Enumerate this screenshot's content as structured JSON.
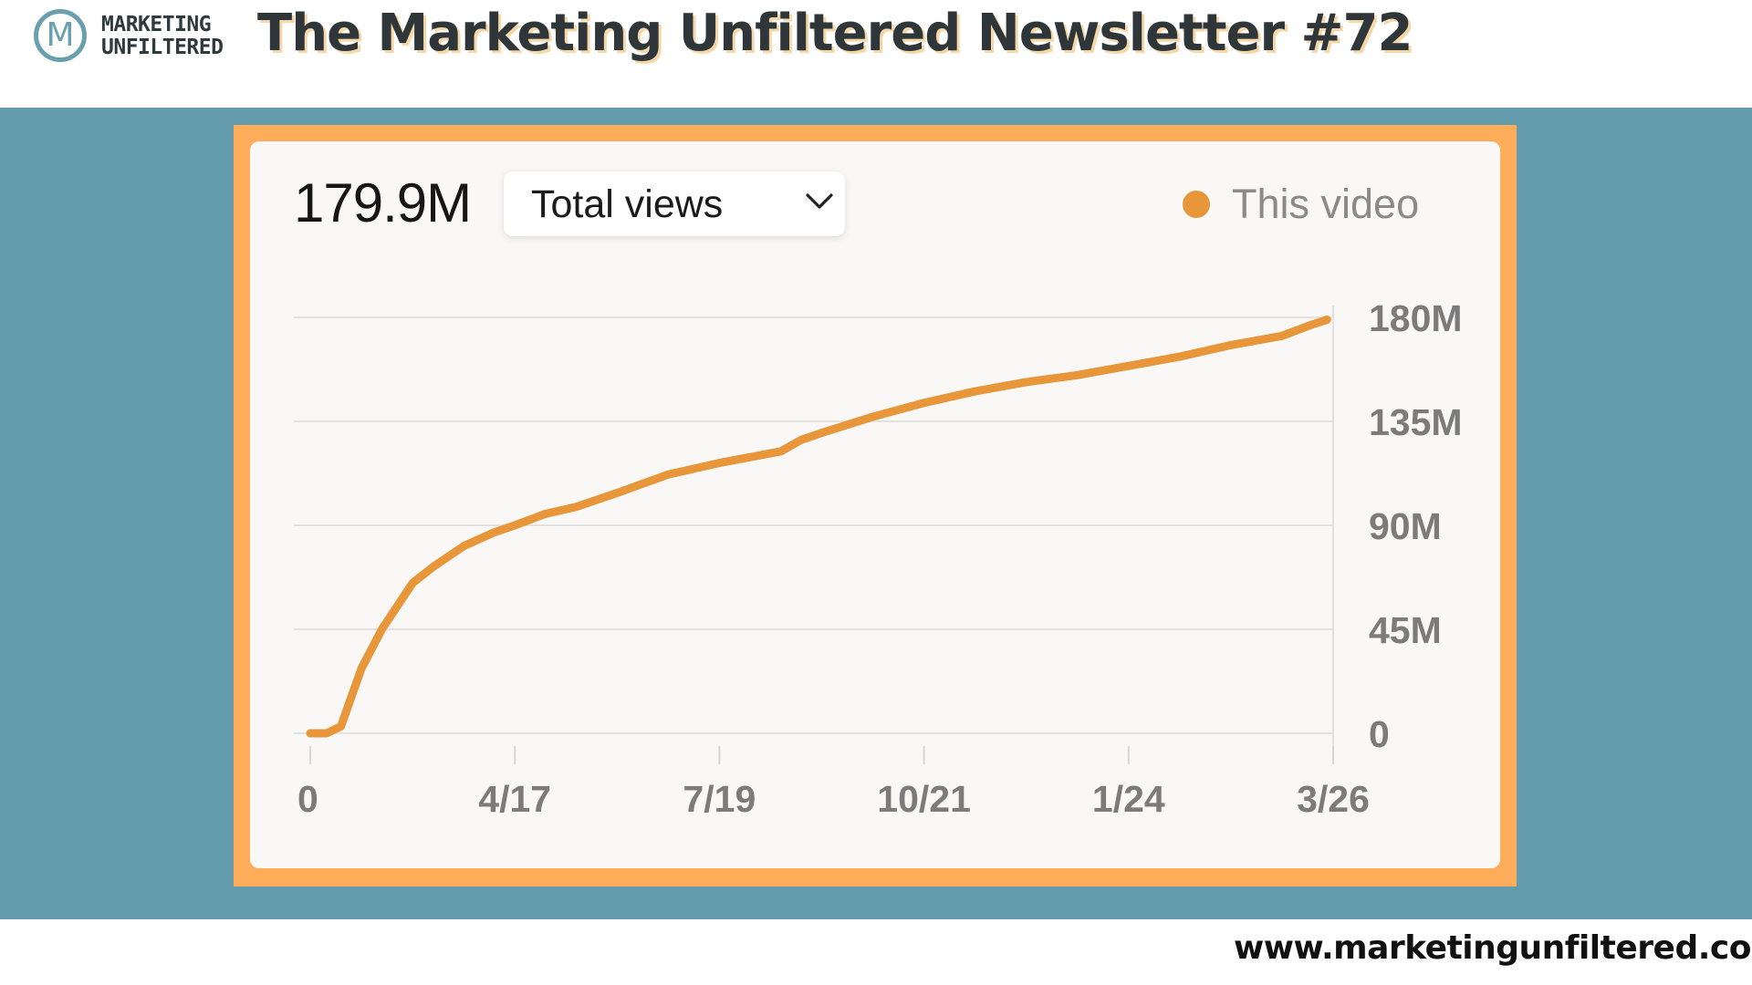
{
  "header": {
    "logo_letter": "M",
    "logo_line1": "MARKETING",
    "logo_line2": "UNFILTERED",
    "title": "The Marketing Unfiltered Newsletter #72"
  },
  "card": {
    "total_value": "179.9M",
    "metric_dropdown": "Total views",
    "legend_label": "This video"
  },
  "footer": {
    "url": "www.marketingunfiltered.co"
  },
  "colors": {
    "band": "#659cad",
    "frame": "#ffad5b",
    "series": "#e8963a",
    "logo": "#6a9fae"
  },
  "icons": {
    "dropdown": "chevron-down-icon",
    "legend": "legend-dot-icon"
  },
  "chart_data": {
    "type": "line",
    "title": "",
    "xlabel": "",
    "ylabel": "",
    "x_ticks": [
      "0",
      "4/17",
      "7/19",
      "10/21",
      "1/24",
      "3/26"
    ],
    "y_ticks": [
      "0",
      "45M",
      "90M",
      "135M",
      "180M"
    ],
    "xlim": [
      0,
      5
    ],
    "ylim": [
      0,
      180
    ],
    "y_unit": "M",
    "grid": true,
    "legend_position": "top-right",
    "series": [
      {
        "name": "This video",
        "x": [
          0,
          0.08,
          0.15,
          0.25,
          0.35,
          0.5,
          0.6,
          0.75,
          0.9,
          1.0,
          1.15,
          1.3,
          1.5,
          1.75,
          2.0,
          2.3,
          2.4,
          2.5,
          2.75,
          3.0,
          3.25,
          3.5,
          3.75,
          4.0,
          4.25,
          4.5,
          4.75,
          4.9,
          4.97
        ],
        "y": [
          0,
          0,
          3,
          28,
          45,
          65,
          72,
          81,
          87,
          90,
          95,
          98,
          104,
          112,
          117,
          122,
          127,
          130,
          137,
          143,
          148,
          152,
          155,
          159,
          163,
          168,
          172,
          177,
          179
        ]
      }
    ]
  }
}
